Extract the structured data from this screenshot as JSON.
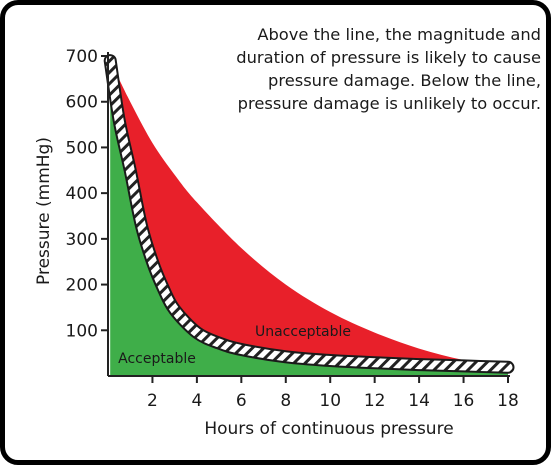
{
  "chart_data": {
    "type": "area",
    "title": "",
    "xlabel": "Hours of continuous pressure",
    "ylabel": "Pressure (mmHg)",
    "xlim": [
      0,
      18
    ],
    "ylim": [
      0,
      700
    ],
    "x_ticks": [
      2,
      4,
      6,
      8,
      10,
      12,
      14,
      16,
      18
    ],
    "y_ticks": [
      100,
      200,
      300,
      400,
      500,
      600,
      700
    ],
    "grid": false,
    "series": [
      {
        "name": "Unacceptable",
        "color": "#e8202a",
        "x": [
          0.1,
          1,
          2,
          3,
          4,
          6,
          8,
          10,
          12,
          14,
          16,
          18
        ],
        "y": [
          690,
          600,
          510,
          440,
          380,
          280,
          200,
          140,
          95,
          60,
          35,
          20
        ]
      },
      {
        "name": "Acceptable",
        "color": "#3fae49",
        "x": [
          0.1,
          0.5,
          1,
          1.5,
          2,
          2.5,
          3,
          4,
          5,
          6,
          8,
          10,
          12,
          14,
          16,
          18
        ],
        "y": [
          690,
          560,
          450,
          330,
          250,
          190,
          145,
          95,
          72,
          58,
          42,
          34,
          29,
          25,
          22,
          19
        ]
      }
    ],
    "annotations": [
      {
        "text": "Unacceptable",
        "x": 8.3,
        "y": 65
      },
      {
        "text": "Acceptable",
        "x": 2.2,
        "y": 35
      }
    ],
    "note_lines": [
      "Above the line, the magnitude and",
      "duration of pressure is likely to cause",
      "pressure damage. Below the line,",
      "pressure damage is unlikely to occur."
    ]
  }
}
